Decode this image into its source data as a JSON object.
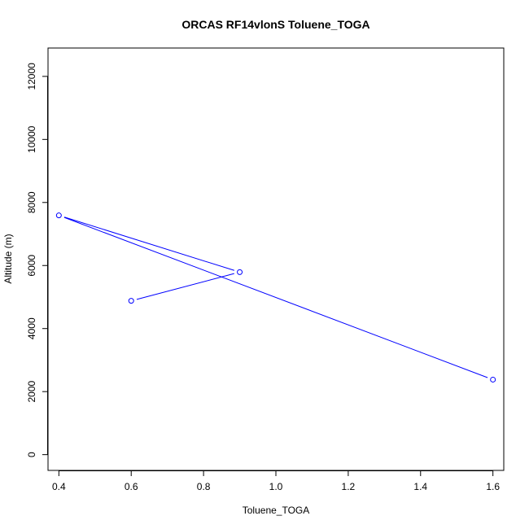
{
  "chart_data": {
    "type": "line",
    "title": "ORCAS RF14vlonS Toluene_TOGA",
    "xlabel": "Toluene_TOGA",
    "ylabel": "Altitude (m)",
    "xlim": [
      0.37,
      1.63
    ],
    "ylim": [
      -500,
      12900
    ],
    "x_ticks": [
      0.4,
      0.6,
      0.8,
      1.0,
      1.2,
      1.4,
      1.6
    ],
    "x_tick_labels": [
      "0.4",
      "0.6",
      "0.8",
      "1.0",
      "1.2",
      "1.4",
      "1.6"
    ],
    "y_ticks": [
      0,
      2000,
      4000,
      6000,
      8000,
      10000,
      12000
    ],
    "y_tick_labels": [
      "0",
      "2000",
      "4000",
      "6000",
      "8000",
      "10000",
      "12000"
    ],
    "series": [
      {
        "color": "#0000ff",
        "marker": "open-circle",
        "points": [
          {
            "x": 1.6,
            "y": 2380
          },
          {
            "x": 0.4,
            "y": 7590
          },
          {
            "x": 0.9,
            "y": 5790
          },
          {
            "x": 0.6,
            "y": 4880
          }
        ]
      }
    ],
    "grid": false,
    "legend": "none"
  }
}
